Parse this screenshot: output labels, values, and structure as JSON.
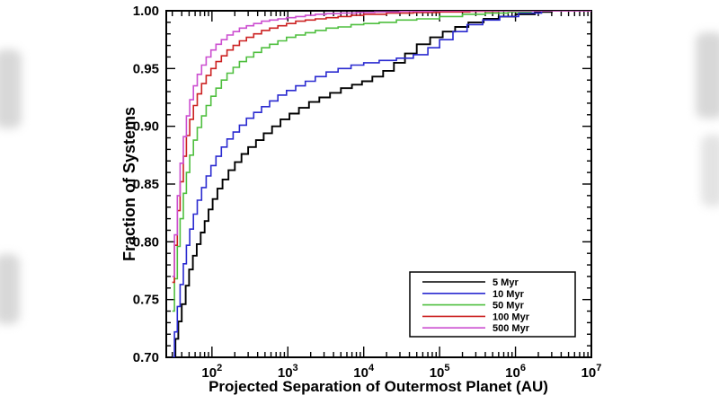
{
  "page": {
    "background_color": "#ffffff",
    "frame_color": "#000000"
  },
  "chart_data": {
    "type": "line",
    "subtype": "step-cdf",
    "title": "",
    "xlabel": "Projected Separation of Outermost Planet (AU)",
    "ylabel": "Fraction of Systems",
    "x_scale": "log",
    "xlim": [
      25,
      10000000
    ],
    "ylim": [
      0.7,
      1.0
    ],
    "y_ticks": [
      0.7,
      0.75,
      0.8,
      0.85,
      0.9,
      0.95,
      1.0
    ],
    "x_tick_exponents": [
      2,
      3,
      4,
      5,
      6,
      7
    ],
    "grid": false,
    "legend_position": "lower-right",
    "series": [
      {
        "name": "5 Myr",
        "color": "#000000",
        "points": [
          [
            30,
            0.7
          ],
          [
            33,
            0.716
          ],
          [
            36,
            0.731
          ],
          [
            40,
            0.746
          ],
          [
            45,
            0.762
          ],
          [
            50,
            0.776
          ],
          [
            56,
            0.788
          ],
          [
            63,
            0.798
          ],
          [
            71,
            0.808
          ],
          [
            80,
            0.818
          ],
          [
            90,
            0.828
          ],
          [
            102,
            0.837
          ],
          [
            118,
            0.846
          ],
          [
            138,
            0.854
          ],
          [
            165,
            0.862
          ],
          [
            200,
            0.869
          ],
          [
            245,
            0.876
          ],
          [
            300,
            0.882
          ],
          [
            380,
            0.888
          ],
          [
            480,
            0.894
          ],
          [
            620,
            0.9
          ],
          [
            800,
            0.906
          ],
          [
            1050,
            0.911
          ],
          [
            1400,
            0.916
          ],
          [
            1900,
            0.921
          ],
          [
            2600,
            0.925
          ],
          [
            3600,
            0.929
          ],
          [
            5000,
            0.933
          ],
          [
            7000,
            0.936
          ],
          [
            9500,
            0.939
          ],
          [
            13000,
            0.943
          ],
          [
            18000,
            0.948
          ],
          [
            25000,
            0.955
          ],
          [
            35000,
            0.963
          ],
          [
            50000,
            0.971
          ],
          [
            75000,
            0.977
          ],
          [
            110000,
            0.982
          ],
          [
            160000,
            0.986
          ],
          [
            240000,
            0.99
          ],
          [
            380000,
            0.993
          ],
          [
            600000,
            0.995
          ],
          [
            1000000,
            0.997
          ],
          [
            1800000,
            0.999
          ],
          [
            3000000,
            1.0
          ],
          [
            10000000,
            1.0
          ]
        ]
      },
      {
        "name": "10 Myr",
        "color": "#2a2ad0",
        "points": [
          [
            30,
            0.7
          ],
          [
            32,
            0.722
          ],
          [
            35,
            0.744
          ],
          [
            38,
            0.763
          ],
          [
            42,
            0.781
          ],
          [
            46,
            0.797
          ],
          [
            51,
            0.811
          ],
          [
            57,
            0.824
          ],
          [
            64,
            0.836
          ],
          [
            73,
            0.847
          ],
          [
            84,
            0.857
          ],
          [
            97,
            0.866
          ],
          [
            113,
            0.874
          ],
          [
            133,
            0.882
          ],
          [
            158,
            0.889
          ],
          [
            190,
            0.895
          ],
          [
            230,
            0.901
          ],
          [
            285,
            0.907
          ],
          [
            355,
            0.912
          ],
          [
            450,
            0.917
          ],
          [
            575,
            0.922
          ],
          [
            740,
            0.927
          ],
          [
            960,
            0.931
          ],
          [
            1270,
            0.935
          ],
          [
            1700,
            0.939
          ],
          [
            2300,
            0.943
          ],
          [
            3200,
            0.947
          ],
          [
            4600,
            0.95
          ],
          [
            6800,
            0.953
          ],
          [
            10000,
            0.955
          ],
          [
            16000,
            0.957
          ],
          [
            27000,
            0.959
          ],
          [
            45000,
            0.962
          ],
          [
            70000,
            0.968
          ],
          [
            100000,
            0.975
          ],
          [
            150000,
            0.982
          ],
          [
            230000,
            0.988
          ],
          [
            370000,
            0.992
          ],
          [
            620000,
            0.995
          ],
          [
            1100000,
            0.998
          ],
          [
            2200000,
            1.0
          ],
          [
            10000000,
            1.0
          ]
        ]
      },
      {
        "name": "50 Myr",
        "color": "#4fbf3f",
        "points": [
          [
            30,
            0.74
          ],
          [
            32,
            0.768
          ],
          [
            35,
            0.796
          ],
          [
            38,
            0.82
          ],
          [
            42,
            0.842
          ],
          [
            46,
            0.86
          ],
          [
            51,
            0.875
          ],
          [
            57,
            0.888
          ],
          [
            64,
            0.899
          ],
          [
            73,
            0.909
          ],
          [
            84,
            0.918
          ],
          [
            97,
            0.926
          ],
          [
            113,
            0.933
          ],
          [
            133,
            0.94
          ],
          [
            158,
            0.946
          ],
          [
            190,
            0.951
          ],
          [
            230,
            0.956
          ],
          [
            285,
            0.96
          ],
          [
            355,
            0.964
          ],
          [
            450,
            0.968
          ],
          [
            575,
            0.971
          ],
          [
            740,
            0.974
          ],
          [
            960,
            0.977
          ],
          [
            1270,
            0.979
          ],
          [
            1700,
            0.981
          ],
          [
            2300,
            0.983
          ],
          [
            3200,
            0.985
          ],
          [
            4600,
            0.986
          ],
          [
            6800,
            0.988
          ],
          [
            10000,
            0.989
          ],
          [
            16000,
            0.99
          ],
          [
            27000,
            0.992
          ],
          [
            50000,
            0.993
          ],
          [
            100000,
            0.995
          ],
          [
            200000,
            0.997
          ],
          [
            400000,
            0.998
          ],
          [
            800000,
            0.999
          ],
          [
            1600000,
            1.0
          ],
          [
            10000000,
            1.0
          ]
        ]
      },
      {
        "name": "100 Myr",
        "color": "#cc2222",
        "points": [
          [
            30,
            0.765
          ],
          [
            32,
            0.797
          ],
          [
            35,
            0.827
          ],
          [
            38,
            0.852
          ],
          [
            42,
            0.874
          ],
          [
            46,
            0.892
          ],
          [
            51,
            0.906
          ],
          [
            57,
            0.918
          ],
          [
            64,
            0.928
          ],
          [
            73,
            0.937
          ],
          [
            84,
            0.944
          ],
          [
            97,
            0.95
          ],
          [
            113,
            0.956
          ],
          [
            133,
            0.961
          ],
          [
            158,
            0.966
          ],
          [
            190,
            0.97
          ],
          [
            230,
            0.974
          ],
          [
            285,
            0.977
          ],
          [
            355,
            0.98
          ],
          [
            450,
            0.983
          ],
          [
            575,
            0.985
          ],
          [
            740,
            0.987
          ],
          [
            960,
            0.989
          ],
          [
            1270,
            0.991
          ],
          [
            1700,
            0.992
          ],
          [
            2300,
            0.993
          ],
          [
            3200,
            0.994
          ],
          [
            4600,
            0.995
          ],
          [
            6800,
            0.996
          ],
          [
            10000,
            0.997
          ],
          [
            20000,
            0.998
          ],
          [
            45000,
            0.9985
          ],
          [
            100000,
            0.999
          ],
          [
            250000,
            0.9995
          ],
          [
            600000,
            1.0
          ],
          [
            10000000,
            1.0
          ]
        ]
      },
      {
        "name": "500 Myr",
        "color": "#cc4fd0",
        "points": [
          [
            30,
            0.77
          ],
          [
            32,
            0.806
          ],
          [
            35,
            0.84
          ],
          [
            38,
            0.868
          ],
          [
            42,
            0.891
          ],
          [
            46,
            0.909
          ],
          [
            51,
            0.923
          ],
          [
            57,
            0.935
          ],
          [
            64,
            0.945
          ],
          [
            73,
            0.953
          ],
          [
            84,
            0.96
          ],
          [
            97,
            0.966
          ],
          [
            113,
            0.971
          ],
          [
            133,
            0.975
          ],
          [
            158,
            0.979
          ],
          [
            190,
            0.982
          ],
          [
            230,
            0.985
          ],
          [
            285,
            0.987
          ],
          [
            355,
            0.989
          ],
          [
            450,
            0.991
          ],
          [
            575,
            0.992
          ],
          [
            740,
            0.993
          ],
          [
            960,
            0.994
          ],
          [
            1270,
            0.995
          ],
          [
            1700,
            0.996
          ],
          [
            2300,
            0.997
          ],
          [
            3200,
            0.9975
          ],
          [
            5000,
            0.998
          ],
          [
            8000,
            0.9985
          ],
          [
            14000,
            0.999
          ],
          [
            30000,
            0.9995
          ],
          [
            80000,
            1.0
          ],
          [
            10000000,
            1.0
          ]
        ]
      }
    ]
  }
}
